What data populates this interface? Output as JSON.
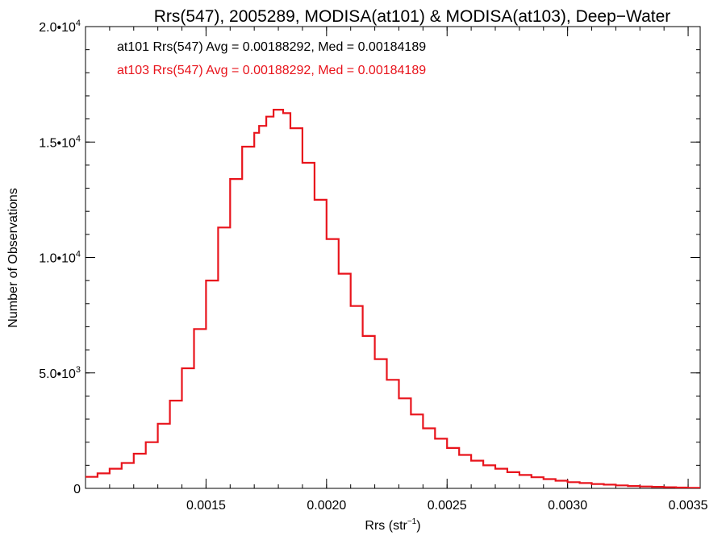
{
  "chart_data": {
    "type": "line",
    "title": "Rrs(547), 2005289, MODISA(at101) & MODISA(at103), Deep−Water",
    "xlabel_prefix": "Rrs (str",
    "xlabel_sup": "−1",
    "xlabel_suffix": ")",
    "ylabel": "Number of Observations",
    "xlim": [
      0.001,
      0.00355
    ],
    "ylim": [
      0,
      20000
    ],
    "x_ticks": [
      {
        "value": 0.0015,
        "label": "0.0015"
      },
      {
        "value": 0.002,
        "label": "0.0020"
      },
      {
        "value": 0.0025,
        "label": "0.0025"
      },
      {
        "value": 0.003,
        "label": "0.0030"
      },
      {
        "value": 0.0035,
        "label": "0.0035"
      }
    ],
    "y_ticks": [
      {
        "value": 0,
        "mant": "0",
        "exp": ""
      },
      {
        "value": 5000,
        "mant": "5.0•10",
        "exp": "3"
      },
      {
        "value": 10000,
        "mant": "1.0•10",
        "exp": "4"
      },
      {
        "value": 15000,
        "mant": "1.5•10",
        "exp": "4"
      },
      {
        "value": 20000,
        "mant": "2.0•10",
        "exp": "4"
      }
    ],
    "annotations": [
      {
        "text": "at101 Rrs(547) Avg = 0.00188292, Med = 0.00184189",
        "color": "#000000"
      },
      {
        "text": "at103 Rrs(547) Avg = 0.00188292, Med = 0.00184189",
        "color": "#e8141c"
      }
    ],
    "series": [
      {
        "color": "#e8141c",
        "x": [
          0.001,
          0.00105,
          0.0011,
          0.00115,
          0.0012,
          0.00125,
          0.0013,
          0.00135,
          0.0014,
          0.00145,
          0.0015,
          0.00155,
          0.0016,
          0.00165,
          0.0017,
          0.00172,
          0.00175,
          0.00178,
          0.0018,
          0.00182,
          0.00185,
          0.0019,
          0.00195,
          0.002,
          0.00205,
          0.0021,
          0.00215,
          0.0022,
          0.00225,
          0.0023,
          0.00235,
          0.0024,
          0.00245,
          0.0025,
          0.00255,
          0.0026,
          0.00265,
          0.0027,
          0.00275,
          0.0028,
          0.00285,
          0.0029,
          0.00295,
          0.003,
          0.00305,
          0.0031,
          0.00315,
          0.0032,
          0.00325,
          0.0033,
          0.00335,
          0.0034,
          0.00345,
          0.0035,
          0.00355
        ],
        "y": [
          500,
          650,
          850,
          1100,
          1500,
          2000,
          2800,
          3800,
          5200,
          6900,
          9000,
          11300,
          13400,
          14800,
          15400,
          15700,
          16100,
          16400,
          16400,
          16250,
          15600,
          14100,
          12500,
          10800,
          9300,
          7900,
          6600,
          5600,
          4700,
          3900,
          3200,
          2600,
          2150,
          1750,
          1450,
          1200,
          1000,
          850,
          700,
          580,
          480,
          400,
          330,
          270,
          230,
          190,
          160,
          130,
          100,
          80,
          65,
          50,
          35,
          20,
          10
        ]
      }
    ]
  }
}
